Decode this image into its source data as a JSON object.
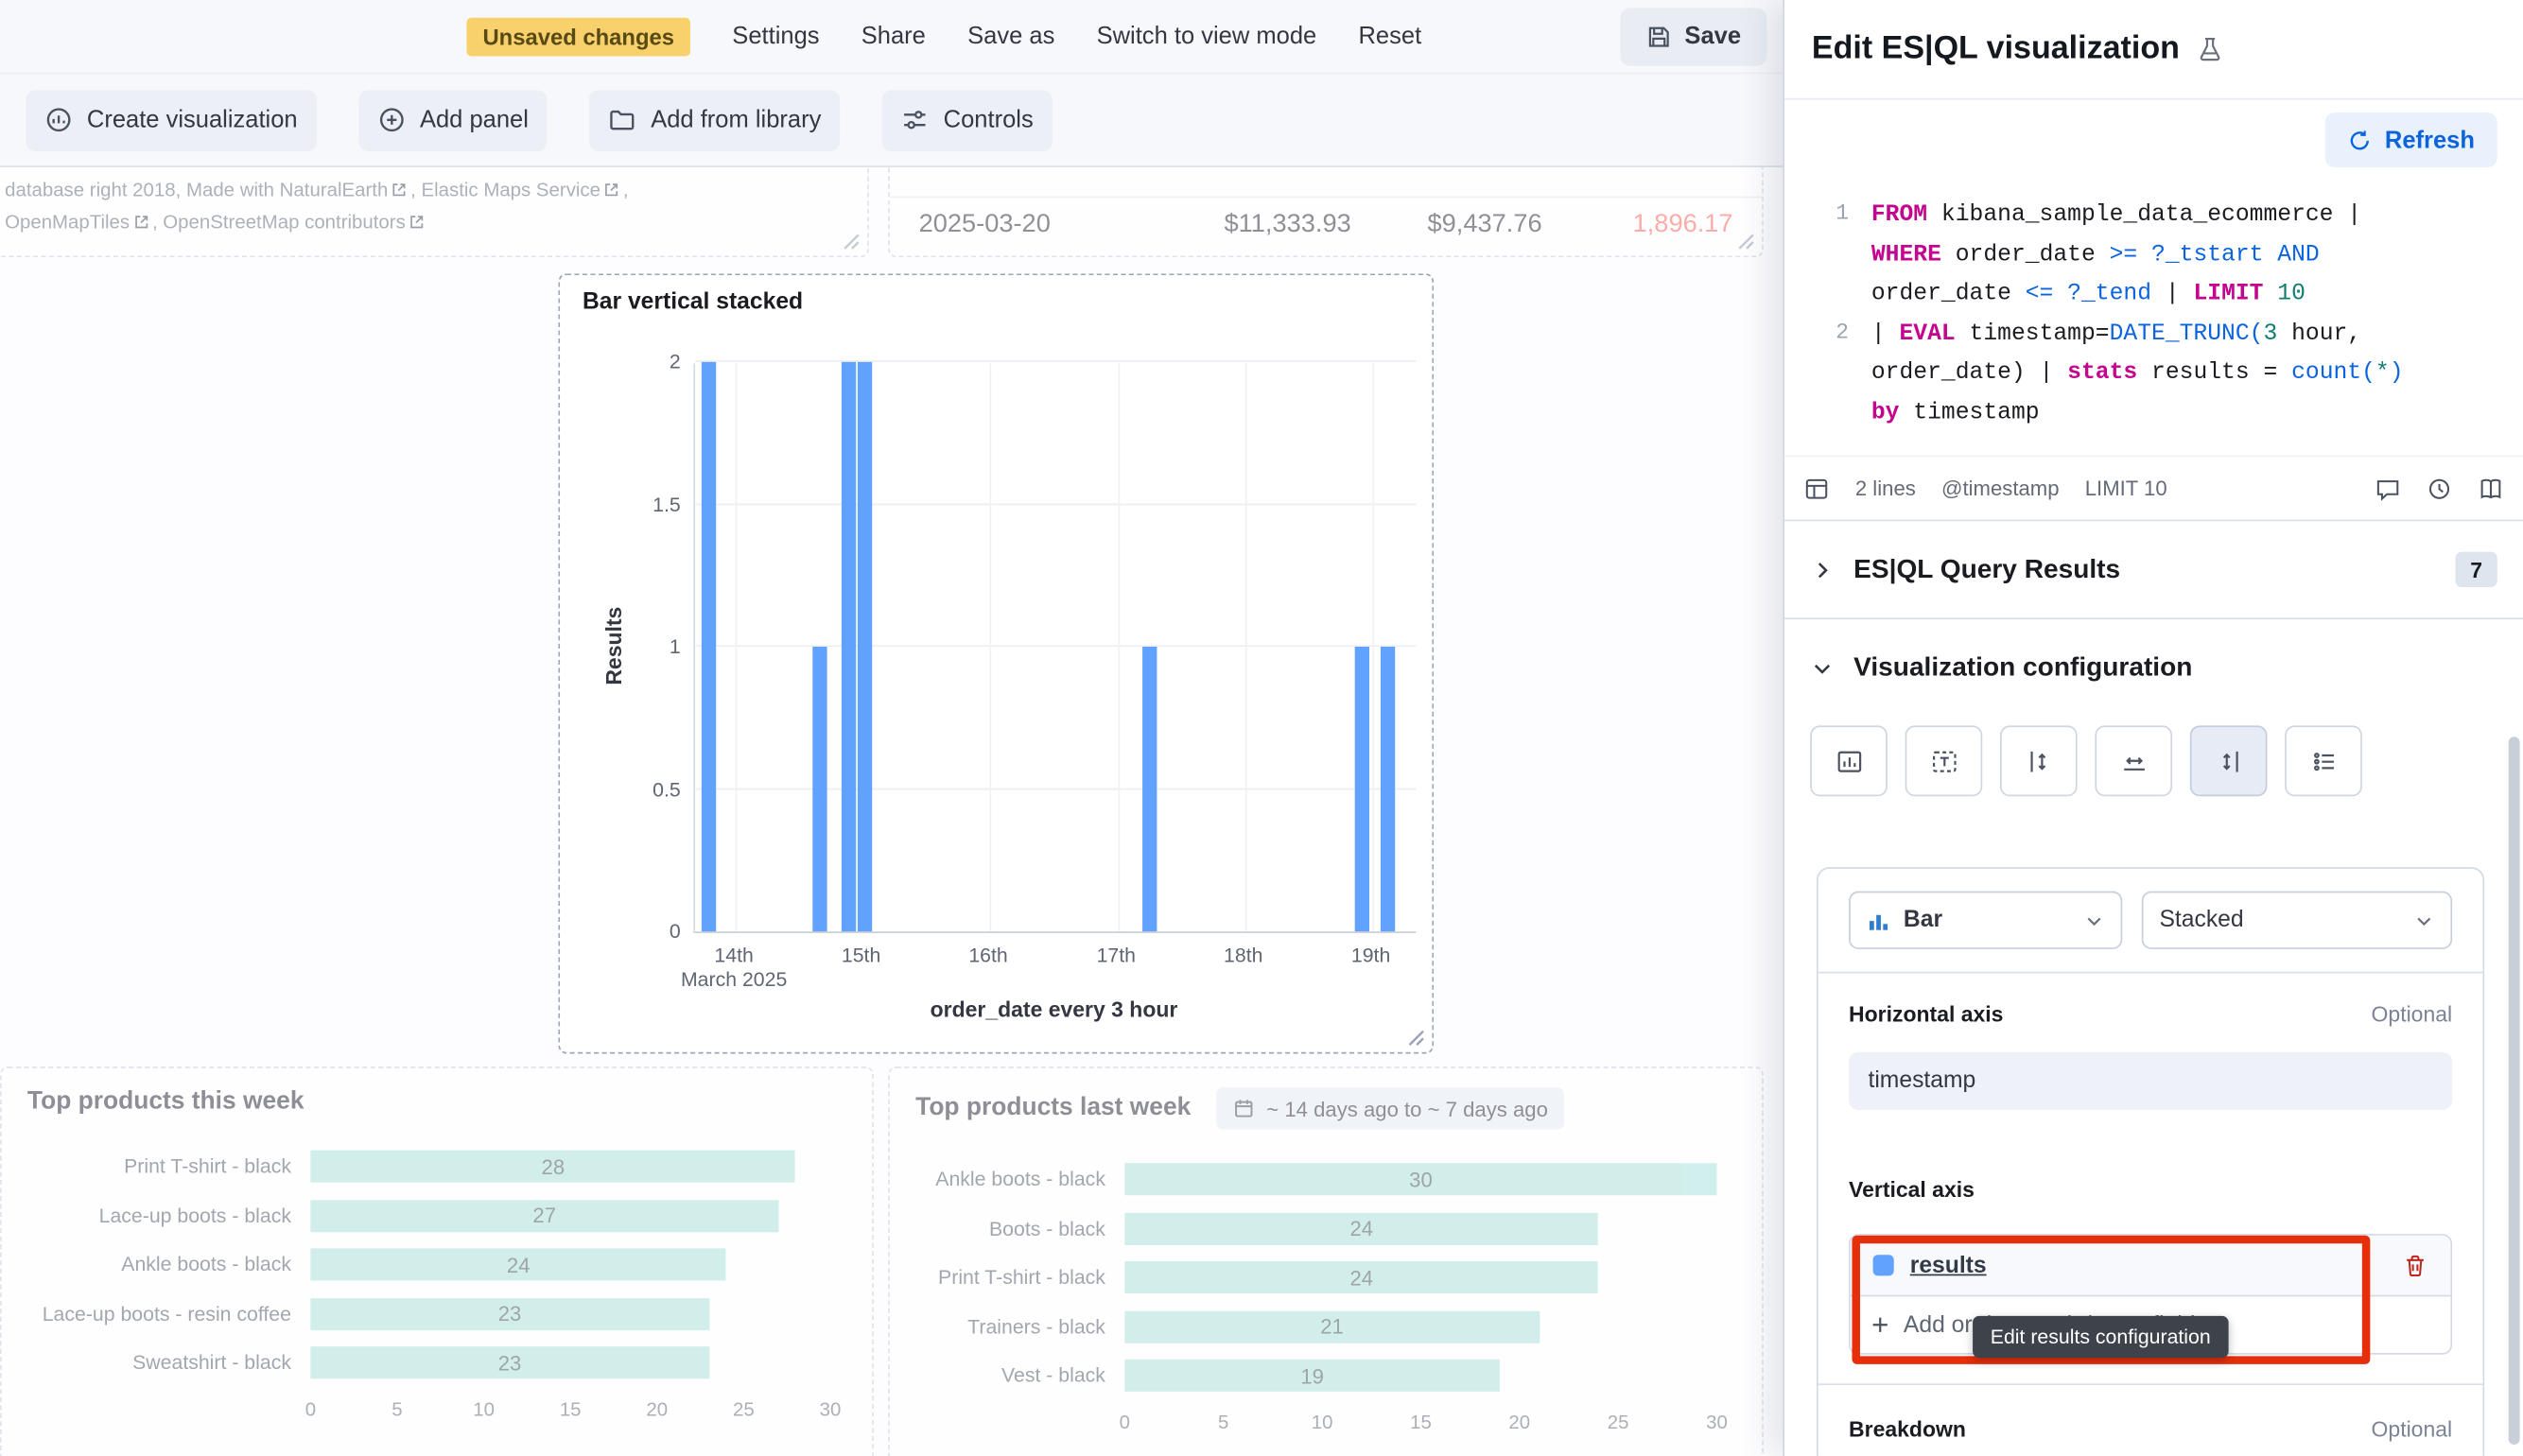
{
  "topbar": {
    "unsaved_badge": "Unsaved changes",
    "settings": "Settings",
    "share": "Share",
    "save_as": "Save as",
    "switch_view": "Switch to view mode",
    "reset": "Reset",
    "save": "Save"
  },
  "panel_toolbar": {
    "create_visualization": "Create visualization",
    "add_panel": "Add panel",
    "add_from_library": "Add from library",
    "controls": "Controls"
  },
  "map_attribution": {
    "part1": "database right 2018, Made with NaturalEarth",
    "part2": ", Elastic Maps Service",
    "part3": ",",
    "part4": "OpenMapTiles",
    "part5": ", OpenStreetMap contributors"
  },
  "metrics_row": {
    "date": "2025-03-20",
    "col2": "$11,333.93",
    "col3": "$9,437.76",
    "col4": "1,896.17"
  },
  "center_chart": {
    "type": "bar",
    "title": "Bar vertical stacked",
    "y_label": "Results",
    "x_label": "order_date every 3 hour",
    "y_max": 2,
    "y_ticks": [
      0,
      0.5,
      1,
      1.5,
      2
    ],
    "x_ticks": [
      {
        "label": "14th",
        "sub": "March 2025",
        "f": 0.056
      },
      {
        "label": "15th",
        "f": 0.232
      },
      {
        "label": "16th",
        "f": 0.408
      },
      {
        "label": "17th",
        "f": 0.585
      },
      {
        "label": "18th",
        "f": 0.761
      },
      {
        "label": "19th",
        "f": 0.9375
      }
    ],
    "bars": [
      {
        "f": 0.009,
        "v": 2
      },
      {
        "f": 0.163,
        "v": 1
      },
      {
        "f": 0.203,
        "v": 2
      },
      {
        "f": 0.225,
        "v": 2
      },
      {
        "f": 0.62,
        "v": 1
      },
      {
        "f": 0.913,
        "v": 1
      },
      {
        "f": 0.949,
        "v": 1
      }
    ],
    "bar_color": "#61a2ff"
  },
  "products_week": {
    "type": "bar",
    "title": "Top products this week",
    "max": 30,
    "ticks": [
      0,
      5,
      10,
      15,
      20,
      25,
      30
    ],
    "bar_color": "#aee3dc",
    "rows": [
      {
        "label": "Print T-shirt - black",
        "value": 28
      },
      {
        "label": "Lace-up boots - black",
        "value": 27
      },
      {
        "label": "Ankle boots - black",
        "value": 24
      },
      {
        "label": "Lace-up boots - resin coffee",
        "value": 23
      },
      {
        "label": "Sweatshirt - black",
        "value": 23
      }
    ]
  },
  "products_last_week": {
    "type": "bar",
    "title": "Top products last week",
    "time_badge": "~ 14 days ago to ~ 7 days ago",
    "max": 30,
    "ticks": [
      0,
      5,
      10,
      15,
      20,
      25,
      30
    ],
    "bar_color": "#aee3dc",
    "rows": [
      {
        "label": "Ankle boots - black",
        "value": 30
      },
      {
        "label": "Boots - black",
        "value": 24
      },
      {
        "label": "Print T-shirt - black",
        "value": 24
      },
      {
        "label": "Trainers - black",
        "value": 21
      },
      {
        "label": "Vest - black",
        "value": 19
      }
    ]
  },
  "flyout": {
    "title": "Edit ES|QL visualization",
    "refresh": "Refresh",
    "editor": {
      "rows": [
        {
          "num": "1",
          "tokens": [
            [
              "kw",
              "FROM"
            ],
            [
              "d",
              " kibana_sample_data_ecommerce |"
            ]
          ]
        },
        {
          "num": "",
          "tokens": [
            [
              "kw",
              "WHERE"
            ],
            [
              "d",
              " order_date "
            ],
            [
              "fn",
              ">="
            ],
            [
              "d",
              " "
            ],
            [
              "fn",
              "?_tstart"
            ],
            [
              "d",
              " "
            ],
            [
              "fn",
              "AND"
            ]
          ]
        },
        {
          "num": "",
          "tokens": [
            [
              "d",
              "order_date "
            ],
            [
              "fn",
              "<="
            ],
            [
              "d",
              " "
            ],
            [
              "fn",
              "?_tend"
            ],
            [
              "d",
              " | "
            ],
            [
              "kw",
              "LIMIT"
            ],
            [
              "d",
              " "
            ],
            [
              "num",
              "10"
            ]
          ]
        },
        {
          "num": "2",
          "tokens": [
            [
              "d",
              "| "
            ],
            [
              "kw",
              "EVAL"
            ],
            [
              "d",
              " timestamp="
            ],
            [
              "fn",
              "DATE_TRUNC("
            ],
            [
              "num",
              "3"
            ],
            [
              "d",
              " hour,"
            ]
          ]
        },
        {
          "num": "",
          "tokens": [
            [
              "d",
              "order_date) | "
            ],
            [
              "kw",
              "stats"
            ],
            [
              "d",
              " results = "
            ],
            [
              "fn",
              "count("
            ],
            [
              "num",
              "*"
            ],
            [
              "fn",
              ")"
            ]
          ]
        },
        {
          "num": "",
          "tokens": [
            [
              "kw",
              "by"
            ],
            [
              "d",
              " timestamp"
            ]
          ]
        }
      ],
      "footer": {
        "lines": "2 lines",
        "timestamp": "@timestamp",
        "limit": "LIMIT 10"
      }
    },
    "results_accordion": {
      "label": "ES|QL Query Results",
      "count": "7"
    },
    "viz_accordion": {
      "label": "Visualization configuration"
    },
    "config": {
      "chart_type": "Bar",
      "stack_mode": "Stacked",
      "horizontal_axis_label": "Horizontal axis",
      "optional": "Optional",
      "horizontal_field": "timestamp",
      "vertical_axis_label": "Vertical axis",
      "dimension": "results",
      "dimension_color": "#61a2ff",
      "add_field": "Add or drag-and-drop a field",
      "breakdown_label": "Breakdown",
      "breakdown_optional": "Optional"
    },
    "tooltip": "Edit results configuration"
  },
  "colors": {
    "annotation_red": "#e62e0b",
    "bar_blue": "#61a2ff",
    "bar_teal": "#aee3dc",
    "warning_badge": "#f9d16c"
  }
}
